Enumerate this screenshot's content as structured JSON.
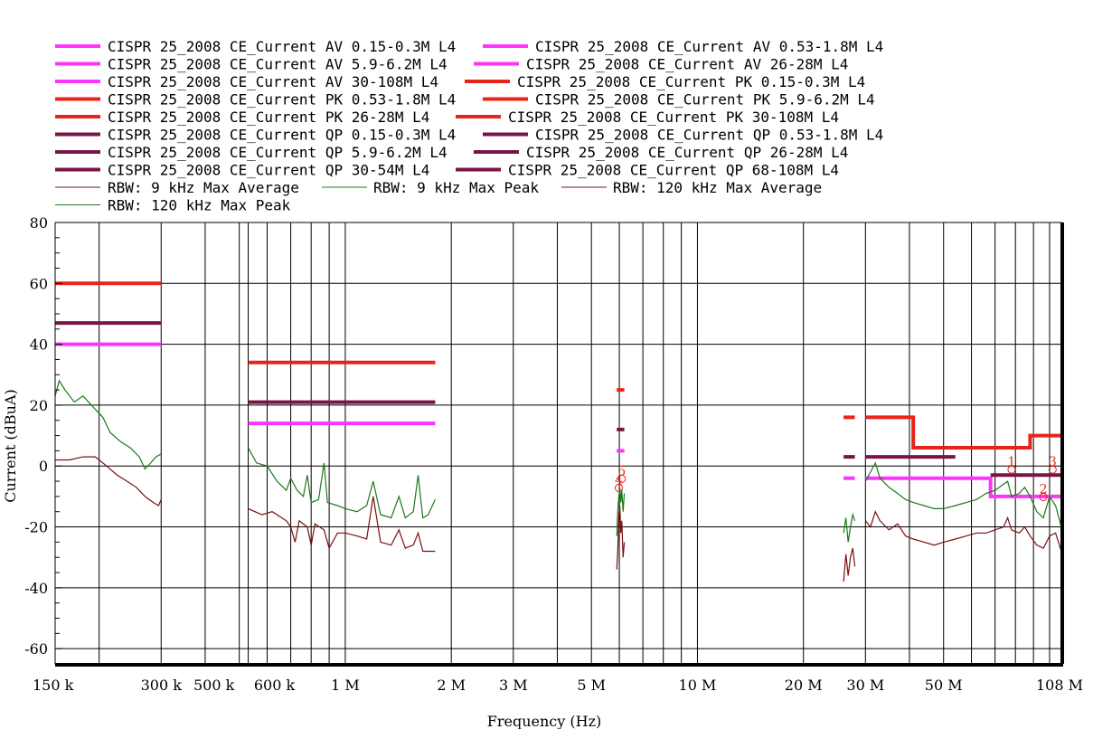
{
  "chart_data": {
    "type": "line",
    "title": "",
    "xlabel": "Frequency (Hz)",
    "ylabel": "Current (dBuA)",
    "x_scale": "log",
    "xlim": [
      150000,
      108000000
    ],
    "ylim": [
      -65,
      80
    ],
    "grid": true,
    "legend_placement": "top",
    "y_ticks": [
      80,
      60,
      40,
      20,
      0,
      -20,
      -40,
      -60
    ],
    "x_ticks": [
      {
        "value": 150000,
        "label": "150 k"
      },
      {
        "value": 300000,
        "label": "300 k"
      },
      {
        "value": 500000,
        "label": "500 k"
      },
      {
        "value": 600000,
        "label": "600 k"
      },
      {
        "value": 1000000,
        "label": "1 M"
      },
      {
        "value": 2000000,
        "label": "2 M"
      },
      {
        "value": 3000000,
        "label": "3 M"
      },
      {
        "value": 5000000,
        "label": "5 M"
      },
      {
        "value": 10000000,
        "label": "10 M"
      },
      {
        "value": 20000000,
        "label": "20 M"
      },
      {
        "value": 30000000,
        "label": "30 M"
      },
      {
        "value": 50000000,
        "label": "50 M"
      },
      {
        "value": 108000000,
        "label": "108 M"
      }
    ],
    "legend": [
      {
        "label": "CISPR 25_2008 CE_Current AV 0.15-0.3M L4",
        "color": "#ff33ff",
        "thick": true
      },
      {
        "label": "CISPR 25_2008 CE_Current AV 0.53-1.8M L4",
        "color": "#ff33ff",
        "thick": true
      },
      {
        "label": "CISPR 25_2008 CE_Current AV 5.9-6.2M L4",
        "color": "#ff33ff",
        "thick": true
      },
      {
        "label": "CISPR 25_2008 CE_Current AV 26-28M L4",
        "color": "#ff33ff",
        "thick": true
      },
      {
        "label": "CISPR 25_2008 CE_Current AV 30-108M L4",
        "color": "#ff33ff",
        "thick": true
      },
      {
        "label": "CISPR 25_2008 CE_Current PK 0.15-0.3M L4",
        "color": "#e8231c",
        "thick": true
      },
      {
        "label": "CISPR 25_2008 CE_Current PK 0.53-1.8M L4",
        "color": "#e8231c",
        "thick": true
      },
      {
        "label": "CISPR 25_2008 CE_Current PK 5.9-6.2M L4",
        "color": "#e8231c",
        "thick": true
      },
      {
        "label": "CISPR 25_2008 CE_Current PK 26-28M L4",
        "color": "#e8231c",
        "thick": true
      },
      {
        "label": "CISPR 25_2008 CE_Current PK 30-108M L4",
        "color": "#e8231c",
        "thick": true
      },
      {
        "label": "CISPR 25_2008 CE_Current QP 0.15-0.3M L4",
        "color": "#7a1448",
        "thick": true
      },
      {
        "label": "CISPR 25_2008 CE_Current QP 0.53-1.8M L4",
        "color": "#7a1448",
        "thick": true
      },
      {
        "label": "CISPR 25_2008 CE_Current QP 5.9-6.2M L4",
        "color": "#7a1448",
        "thick": true
      },
      {
        "label": "CISPR 25_2008 CE_Current QP 26-28M L4",
        "color": "#7a1448",
        "thick": true
      },
      {
        "label": "CISPR 25_2008 CE_Current QP 30-54M L4",
        "color": "#7a1448",
        "thick": true
      },
      {
        "label": "CISPR 25_2008 CE_Current QP 68-108M L4",
        "color": "#7a1448",
        "thick": true
      },
      {
        "label": "RBW: 9 kHz Max Average",
        "color": "#7a1010",
        "thick": false
      },
      {
        "label": "RBW: 9 kHz Max Peak",
        "color": "#1a7a1a",
        "thick": false
      },
      {
        "label": "RBW: 120 kHz Max Average",
        "color": "#7a1010",
        "thick": false
      },
      {
        "label": "RBW: 120 kHz Max Peak",
        "color": "#1a7a1a",
        "thick": false
      }
    ],
    "limit_lines": [
      {
        "name": "AV 0.15-0.3M",
        "color": "#ff33ff",
        "points": [
          [
            150000,
            40
          ],
          [
            300000,
            40
          ]
        ]
      },
      {
        "name": "AV 0.53-1.8M",
        "color": "#ff33ff",
        "points": [
          [
            530000,
            14
          ],
          [
            1800000,
            14
          ]
        ]
      },
      {
        "name": "AV 5.9-6.2M",
        "color": "#ff33ff",
        "points": [
          [
            5900000,
            5
          ],
          [
            6200000,
            5
          ]
        ]
      },
      {
        "name": "AV 26-28M",
        "color": "#ff33ff",
        "points": [
          [
            26000000,
            -4
          ],
          [
            28000000,
            -4
          ]
        ]
      },
      {
        "name": "AV 30-108M",
        "color": "#ff33ff",
        "points": [
          [
            30000000,
            -4
          ],
          [
            68000000,
            -4
          ],
          [
            68000000,
            -10
          ],
          [
            108000000,
            -10
          ]
        ]
      },
      {
        "name": "PK 0.15-0.3M",
        "color": "#e8231c",
        "points": [
          [
            150000,
            60
          ],
          [
            300000,
            60
          ]
        ]
      },
      {
        "name": "PK 0.53-1.8M",
        "color": "#e8231c",
        "points": [
          [
            530000,
            34
          ],
          [
            1800000,
            34
          ]
        ]
      },
      {
        "name": "PK 5.9-6.2M",
        "color": "#e8231c",
        "points": [
          [
            5900000,
            25
          ],
          [
            6200000,
            25
          ]
        ]
      },
      {
        "name": "PK 26-28M",
        "color": "#e8231c",
        "points": [
          [
            26000000,
            16
          ],
          [
            28000000,
            16
          ]
        ]
      },
      {
        "name": "PK 30-108M",
        "color": "#e8231c",
        "points": [
          [
            30000000,
            16
          ],
          [
            41000000,
            16
          ],
          [
            41000000,
            6
          ],
          [
            88000000,
            6
          ],
          [
            88000000,
            10
          ],
          [
            108000000,
            10
          ]
        ]
      },
      {
        "name": "QP 0.15-0.3M",
        "color": "#7a1448",
        "points": [
          [
            150000,
            47
          ],
          [
            300000,
            47
          ]
        ]
      },
      {
        "name": "QP 0.53-1.8M",
        "color": "#7a1448",
        "points": [
          [
            530000,
            21
          ],
          [
            1800000,
            21
          ]
        ]
      },
      {
        "name": "QP 5.9-6.2M",
        "color": "#7a1448",
        "points": [
          [
            5900000,
            12
          ],
          [
            6200000,
            12
          ]
        ]
      },
      {
        "name": "QP 26-28M",
        "color": "#7a1448",
        "points": [
          [
            26000000,
            3
          ],
          [
            28000000,
            3
          ]
        ]
      },
      {
        "name": "QP 30-54M",
        "color": "#7a1448",
        "points": [
          [
            30000000,
            3
          ],
          [
            54000000,
            3
          ]
        ]
      },
      {
        "name": "QP 68-108M",
        "color": "#7a1448",
        "points": [
          [
            68000000,
            -3
          ],
          [
            108000000,
            -3
          ]
        ]
      }
    ],
    "series": [
      {
        "name": "RBW: 9 kHz Max Peak",
        "color": "#1a7a1a",
        "points": [
          [
            150000,
            23
          ],
          [
            154000,
            28
          ],
          [
            160000,
            25
          ],
          [
            170000,
            21
          ],
          [
            180000,
            23
          ],
          [
            190000,
            20
          ],
          [
            205000,
            16
          ],
          [
            215000,
            11
          ],
          [
            230000,
            8
          ],
          [
            245000,
            6
          ],
          [
            260000,
            3
          ],
          [
            270000,
            -1
          ],
          [
            280000,
            1
          ],
          [
            290000,
            3
          ],
          [
            300000,
            4
          ]
        ]
      },
      {
        "name": "RBW: 9 kHz Max Average",
        "color": "#7a1010",
        "points": [
          [
            150000,
            2
          ],
          [
            165000,
            2
          ],
          [
            180000,
            3
          ],
          [
            195000,
            3
          ],
          [
            210000,
            0
          ],
          [
            225000,
            -3
          ],
          [
            240000,
            -5
          ],
          [
            255000,
            -7
          ],
          [
            270000,
            -10
          ],
          [
            285000,
            -12
          ],
          [
            295000,
            -13
          ],
          [
            300000,
            -11
          ]
        ]
      },
      {
        "name": "RBW: 9 kHz Max Peak",
        "color": "#1a7a1a",
        "points": [
          [
            530000,
            6
          ],
          [
            560000,
            1
          ],
          [
            600000,
            0
          ],
          [
            640000,
            -5
          ],
          [
            680000,
            -8
          ],
          [
            700000,
            -4
          ],
          [
            730000,
            -8
          ],
          [
            760000,
            -10
          ],
          [
            780000,
            -3
          ],
          [
            800000,
            -12
          ],
          [
            840000,
            -11
          ],
          [
            870000,
            1
          ],
          [
            890000,
            -12
          ],
          [
            950000,
            -13
          ],
          [
            1000000,
            -14
          ],
          [
            1080000,
            -15
          ],
          [
            1150000,
            -13
          ],
          [
            1200000,
            -5
          ],
          [
            1260000,
            -16
          ],
          [
            1350000,
            -17
          ],
          [
            1420000,
            -10
          ],
          [
            1480000,
            -17
          ],
          [
            1560000,
            -15
          ],
          [
            1610000,
            -3
          ],
          [
            1660000,
            -17
          ],
          [
            1720000,
            -16
          ],
          [
            1800000,
            -11
          ]
        ]
      },
      {
        "name": "RBW: 9 kHz Max Average",
        "color": "#7a1010",
        "points": [
          [
            530000,
            -14
          ],
          [
            580000,
            -16
          ],
          [
            620000,
            -15
          ],
          [
            680000,
            -18
          ],
          [
            700000,
            -20
          ],
          [
            720000,
            -25
          ],
          [
            740000,
            -18
          ],
          [
            780000,
            -20
          ],
          [
            800000,
            -26
          ],
          [
            820000,
            -19
          ],
          [
            870000,
            -21
          ],
          [
            900000,
            -27
          ],
          [
            950000,
            -22
          ],
          [
            1000000,
            -22
          ],
          [
            1080000,
            -23
          ],
          [
            1150000,
            -24
          ],
          [
            1200000,
            -10
          ],
          [
            1260000,
            -25
          ],
          [
            1350000,
            -26
          ],
          [
            1420000,
            -21
          ],
          [
            1480000,
            -27
          ],
          [
            1560000,
            -26
          ],
          [
            1610000,
            -22
          ],
          [
            1660000,
            -28
          ],
          [
            1720000,
            -28
          ],
          [
            1800000,
            -28
          ]
        ]
      },
      {
        "name": "RBW: 9 kHz Max Peak",
        "color": "#1a7a1a",
        "points": [
          [
            5900000,
            -23
          ],
          [
            5940000,
            -15
          ],
          [
            5980000,
            -10
          ],
          [
            6020000,
            -7
          ],
          [
            6060000,
            -12
          ],
          [
            6100000,
            -8
          ],
          [
            6150000,
            -15
          ],
          [
            6200000,
            -9
          ]
        ]
      },
      {
        "name": "RBW: 9 kHz Max Average",
        "color": "#7a1010",
        "points": [
          [
            5900000,
            -34
          ],
          [
            5940000,
            -28
          ],
          [
            5980000,
            -16
          ],
          [
            6020000,
            -13
          ],
          [
            6060000,
            -22
          ],
          [
            6100000,
            -18
          ],
          [
            6150000,
            -30
          ],
          [
            6200000,
            -25
          ]
        ]
      },
      {
        "name": "RBW: 120 kHz Max Peak",
        "color": "#1a7a1a",
        "points": [
          [
            26000000,
            -22
          ],
          [
            26400000,
            -17
          ],
          [
            26800000,
            -25
          ],
          [
            27200000,
            -20
          ],
          [
            27600000,
            -16
          ],
          [
            28000000,
            -18
          ]
        ]
      },
      {
        "name": "RBW: 120 kHz Max Average",
        "color": "#7a1010",
        "points": [
          [
            26000000,
            -38
          ],
          [
            26400000,
            -29
          ],
          [
            26800000,
            -36
          ],
          [
            27200000,
            -30
          ],
          [
            27600000,
            -27
          ],
          [
            28000000,
            -33
          ]
        ]
      },
      {
        "name": "RBW: 120 kHz Max Peak",
        "color": "#1a7a1a",
        "points": [
          [
            30000000,
            -5
          ],
          [
            31000000,
            -2
          ],
          [
            32000000,
            1
          ],
          [
            33000000,
            -4
          ],
          [
            35000000,
            -7
          ],
          [
            37000000,
            -9
          ],
          [
            39000000,
            -11
          ],
          [
            41000000,
            -12
          ],
          [
            44000000,
            -13
          ],
          [
            47000000,
            -14
          ],
          [
            50000000,
            -14
          ],
          [
            54000000,
            -13
          ],
          [
            58000000,
            -12
          ],
          [
            62000000,
            -11
          ],
          [
            66000000,
            -9
          ],
          [
            70000000,
            -8
          ],
          [
            74000000,
            -6
          ],
          [
            76000000,
            -5
          ],
          [
            78000000,
            -10
          ],
          [
            82000000,
            -9
          ],
          [
            85000000,
            -7
          ],
          [
            88000000,
            -10
          ],
          [
            92000000,
            -15
          ],
          [
            96000000,
            -17
          ],
          [
            100000000,
            -10
          ],
          [
            104000000,
            -13
          ],
          [
            108000000,
            -20
          ]
        ]
      },
      {
        "name": "RBW: 120 kHz Max Average",
        "color": "#7a1010",
        "points": [
          [
            30000000,
            -18
          ],
          [
            31000000,
            -20
          ],
          [
            32000000,
            -15
          ],
          [
            33000000,
            -18
          ],
          [
            35000000,
            -21
          ],
          [
            37000000,
            -19
          ],
          [
            39000000,
            -23
          ],
          [
            41000000,
            -24
          ],
          [
            44000000,
            -25
          ],
          [
            47000000,
            -26
          ],
          [
            50000000,
            -25
          ],
          [
            54000000,
            -24
          ],
          [
            58000000,
            -23
          ],
          [
            62000000,
            -22
          ],
          [
            66000000,
            -22
          ],
          [
            70000000,
            -21
          ],
          [
            74000000,
            -20
          ],
          [
            76000000,
            -17
          ],
          [
            78000000,
            -21
          ],
          [
            82000000,
            -22
          ],
          [
            85000000,
            -20
          ],
          [
            88000000,
            -23
          ],
          [
            92000000,
            -26
          ],
          [
            96000000,
            -27
          ],
          [
            100000000,
            -23
          ],
          [
            104000000,
            -22
          ],
          [
            108000000,
            -28
          ]
        ]
      }
    ],
    "markers": [
      {
        "label": "4",
        "x": 5980000,
        "y": -6
      },
      {
        "label": "5",
        "x": 6100000,
        "y": -3
      },
      {
        "label": "1",
        "x": 78000000,
        "y": 0
      },
      {
        "label": "2",
        "x": 96000000,
        "y": -9
      },
      {
        "label": "3",
        "x": 102000000,
        "y": 0
      }
    ]
  }
}
